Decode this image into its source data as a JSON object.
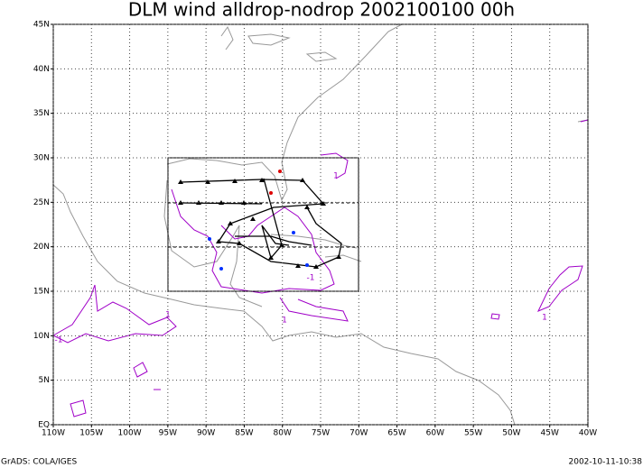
{
  "chart_data": {
    "type": "map",
    "title": "DLM wind alldrop-nodrop 2002100100 00h",
    "xlim": [
      -110,
      -40
    ],
    "ylim": [
      0,
      45
    ],
    "xticks": [
      {
        "value": -110,
        "label": "110W"
      },
      {
        "value": -105,
        "label": "105W"
      },
      {
        "value": -100,
        "label": "100W"
      },
      {
        "value": -95,
        "label": "95W"
      },
      {
        "value": -90,
        "label": "90W"
      },
      {
        "value": -85,
        "label": "85W"
      },
      {
        "value": -80,
        "label": "80W"
      },
      {
        "value": -75,
        "label": "75W"
      },
      {
        "value": -70,
        "label": "70W"
      },
      {
        "value": -65,
        "label": "65W"
      },
      {
        "value": -60,
        "label": "60W"
      },
      {
        "value": -55,
        "label": "55W"
      },
      {
        "value": -50,
        "label": "50W"
      },
      {
        "value": -45,
        "label": "45W"
      },
      {
        "value": -40,
        "label": "40W"
      }
    ],
    "yticks": [
      {
        "value": 0,
        "label": "EQ"
      },
      {
        "value": 5,
        "label": "5N"
      },
      {
        "value": 10,
        "label": "10N"
      },
      {
        "value": 15,
        "label": "15N"
      },
      {
        "value": 20,
        "label": "20N"
      },
      {
        "value": 25,
        "label": "25N"
      },
      {
        "value": 30,
        "label": "30N"
      },
      {
        "value": 35,
        "label": "35N"
      },
      {
        "value": 40,
        "label": "40N"
      },
      {
        "value": 45,
        "label": "45N"
      }
    ],
    "grid": true,
    "contour_labels": [
      "-1",
      "1",
      "1",
      "-1",
      "1",
      "1"
    ],
    "footer_left": "GrADS: COLA/IGES",
    "footer_right": "2002-10-11-10:38"
  }
}
